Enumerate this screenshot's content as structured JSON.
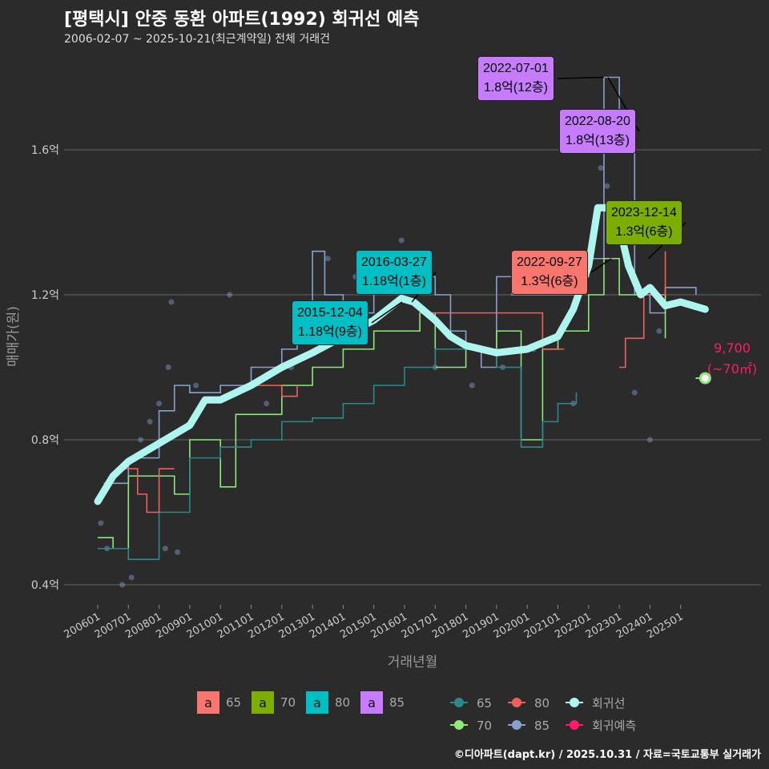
{
  "header": {
    "title": "[평택시] 안중 동환 아파트(1992) 회귀선 예측",
    "subtitle": "2006-02-07 ~ 2025-10-21(최근계약일) 전체 거래건"
  },
  "footer": "©디아파트(dapt.kr) / 2025.10.31 / 자료=국토교통부 실거래가",
  "chart_data": {
    "type": "line",
    "xlabel": "거래년월",
    "ylabel": "매매가(원)",
    "xticks": [
      "200601",
      "200701",
      "200801",
      "200901",
      "201001",
      "201101",
      "201201",
      "201301",
      "201401",
      "201501",
      "201601",
      "201701",
      "201801",
      "201901",
      "202001",
      "202101",
      "202201",
      "202301",
      "202401",
      "202501"
    ],
    "yticks": [
      {
        "v": 0.4,
        "label": "0.4억"
      },
      {
        "v": 0.8,
        "label": "0.8억"
      },
      {
        "v": 1.2,
        "label": "1.2억"
      },
      {
        "v": 1.6,
        "label": "1.6억"
      }
    ],
    "ylim": [
      0.32,
      1.86
    ],
    "xlim": [
      2005.3,
      2026.3
    ],
    "colors": {
      "65": "#2a8a8a",
      "70": "#8ee87a",
      "80": "#f0605a",
      "85": "#8aa0cc",
      "reg": "#aef5f0",
      "pred": "#ff1a6e"
    },
    "series": [
      {
        "name": "85",
        "points": [
          [
            2006.2,
            0.68
          ],
          [
            2007,
            0.75
          ],
          [
            2008,
            0.88
          ],
          [
            2008.5,
            0.95
          ],
          [
            2009,
            0.93
          ],
          [
            2010,
            0.95
          ],
          [
            2011,
            1.0
          ],
          [
            2012,
            1.05
          ],
          [
            2012.5,
            1.1
          ],
          [
            2013,
            1.32
          ],
          [
            2013.4,
            1.2
          ],
          [
            2014,
            1.15
          ],
          [
            2015,
            1.25
          ],
          [
            2016,
            1.25
          ],
          [
            2017,
            1.2
          ],
          [
            2017.5,
            1.1
          ],
          [
            2018,
            1.05
          ],
          [
            2018.5,
            1.0
          ],
          [
            2019,
            1.25
          ],
          [
            2019.5,
            1.2
          ],
          [
            2020,
            1.2
          ],
          [
            2021,
            1.2
          ],
          [
            2021.5,
            1.25
          ],
          [
            2022,
            1.3
          ],
          [
            2022.5,
            1.8
          ],
          [
            2023,
            1.6
          ],
          [
            2023.5,
            1.2
          ],
          [
            2024,
            1.15
          ],
          [
            2024.5,
            1.22
          ],
          [
            2025.5,
            1.2
          ]
        ]
      },
      {
        "name": "70",
        "points": [
          [
            2006,
            0.53
          ],
          [
            2006.5,
            0.5
          ],
          [
            2007,
            0.7
          ],
          [
            2008,
            0.7
          ],
          [
            2008.5,
            0.65
          ],
          [
            2009,
            0.8
          ],
          [
            2010,
            0.67
          ],
          [
            2010.5,
            0.87
          ],
          [
            2011,
            0.87
          ],
          [
            2012,
            0.95
          ],
          [
            2013,
            1.0
          ],
          [
            2014,
            1.05
          ],
          [
            2015,
            1.1
          ],
          [
            2016,
            1.1
          ],
          [
            2016.5,
            1.15
          ],
          [
            2017,
            1.0
          ],
          [
            2018,
            1.05
          ],
          [
            2019,
            1.1
          ],
          [
            2019.8,
            0.8
          ],
          [
            2020.3,
            0.8
          ],
          [
            2020.5,
            1.05
          ],
          [
            2021,
            1.1
          ],
          [
            2022,
            1.2
          ],
          [
            2022.5,
            1.3
          ],
          [
            2023,
            1.2
          ],
          [
            2024,
            1.2
          ],
          [
            2024.5,
            1.08
          ]
        ]
      },
      {
        "name": "65",
        "points": [
          [
            2006,
            0.5
          ],
          [
            2007,
            0.47
          ],
          [
            2008,
            0.6
          ],
          [
            2009,
            0.75
          ],
          [
            2010,
            0.78
          ],
          [
            2011,
            0.8
          ],
          [
            2012,
            0.85
          ],
          [
            2013,
            0.86
          ],
          [
            2014,
            0.9
          ],
          [
            2015,
            0.95
          ],
          [
            2016,
            1.0
          ],
          [
            2017,
            1.05
          ],
          [
            2018,
            1.05
          ],
          [
            2019,
            1.0
          ],
          [
            2019.8,
            0.78
          ],
          [
            2020.5,
            0.85
          ],
          [
            2021,
            0.9
          ],
          [
            2021.6,
            0.93
          ]
        ]
      },
      {
        "name": "80",
        "points": [
          [
            2006.6,
            0.72
          ],
          [
            2007.3,
            0.65
          ],
          [
            2007.6,
            0.6
          ],
          [
            2008,
            0.72
          ],
          [
            2008.5,
            0.72
          ]
        ]
      },
      {
        "name": "80",
        "points": [
          [
            2011,
            0.95
          ],
          [
            2011.5,
            0.95
          ],
          [
            2012,
            0.92
          ],
          [
            2012.5,
            0.95
          ]
        ]
      },
      {
        "name": "80",
        "points": [
          [
            2016.5,
            1.15
          ],
          [
            2017.2,
            1.15
          ],
          [
            2020.5,
            1.05
          ],
          [
            2021.2,
            1.05
          ]
        ]
      },
      {
        "name": "80",
        "points": [
          [
            2023,
            1.0
          ],
          [
            2023.2,
            1.08
          ],
          [
            2023.6,
            1.08
          ],
          [
            2023.8,
            1.2
          ],
          [
            2024.5,
            1.32
          ]
        ]
      }
    ],
    "regression": {
      "name": "회귀선",
      "points": [
        [
          2006,
          0.63
        ],
        [
          2006.5,
          0.7
        ],
        [
          2007,
          0.74
        ],
        [
          2008,
          0.79
        ],
        [
          2009,
          0.84
        ],
        [
          2009.5,
          0.91
        ],
        [
          2010,
          0.91
        ],
        [
          2011,
          0.95
        ],
        [
          2012,
          1.0
        ],
        [
          2013,
          1.04
        ],
        [
          2014,
          1.085
        ],
        [
          2015,
          1.13
        ],
        [
          2015.9,
          1.19
        ],
        [
          2016.3,
          1.18
        ],
        [
          2017,
          1.13
        ],
        [
          2017.5,
          1.085
        ],
        [
          2018,
          1.06
        ],
        [
          2019,
          1.04
        ],
        [
          2020,
          1.05
        ],
        [
          2021,
          1.085
        ],
        [
          2021.5,
          1.16
        ],
        [
          2022,
          1.28
        ],
        [
          2022.3,
          1.44
        ],
        [
          2022.6,
          1.44
        ],
        [
          2023,
          1.39
        ],
        [
          2023.3,
          1.28
        ],
        [
          2023.7,
          1.2
        ],
        [
          2024,
          1.22
        ],
        [
          2024.5,
          1.17
        ],
        [
          2025,
          1.18
        ],
        [
          2025.8,
          1.16
        ]
      ]
    },
    "scatter": [
      [
        2006.1,
        0.57
      ],
      [
        2006.3,
        0.5
      ],
      [
        2006.8,
        0.4
      ],
      [
        2007.1,
        0.42
      ],
      [
        2007.4,
        0.8
      ],
      [
        2007.7,
        0.85
      ],
      [
        2008,
        0.9
      ],
      [
        2008.3,
        1.0
      ],
      [
        2008.4,
        1.18
      ],
      [
        2008.2,
        0.5
      ],
      [
        2008.6,
        0.49
      ],
      [
        2009.2,
        0.95
      ],
      [
        2010.3,
        1.2
      ],
      [
        2011.5,
        0.9
      ],
      [
        2012.3,
        1.0
      ],
      [
        2013.5,
        1.3
      ],
      [
        2014.4,
        1.25
      ],
      [
        2015.5,
        1.3
      ],
      [
        2015.9,
        1.35
      ],
      [
        2016.8,
        1.3
      ],
      [
        2017,
        1.0
      ],
      [
        2018.2,
        0.95
      ],
      [
        2019.2,
        1.0
      ],
      [
        2020.2,
        1.05
      ],
      [
        2021.5,
        0.9
      ],
      [
        2022.4,
        1.55
      ],
      [
        2022.6,
        1.5
      ],
      [
        2023.5,
        0.93
      ],
      [
        2024,
        0.8
      ],
      [
        2024.3,
        1.1
      ]
    ],
    "annotations": [
      {
        "date": "2022-07-01",
        "price": "1.8억(12층)",
        "group": "85",
        "x": 2022.5,
        "y": 1.8
      },
      {
        "date": "2022-08-20",
        "price": "1.8억(13층)",
        "group": "85",
        "x": 2022.63,
        "y": 1.8
      },
      {
        "date": "2023-12-14",
        "price": "1.3억(6층)",
        "group": "70",
        "x": 2023.95,
        "y": 1.3
      },
      {
        "date": "2022-09-27",
        "price": "1.3억(6층)",
        "group": "65",
        "x": 2022.74,
        "y": 1.3
      },
      {
        "date": "2016-03-27",
        "price": "1.18억(1층)",
        "group": "80",
        "x": 2016.24,
        "y": 1.18
      },
      {
        "date": "2015-12-04",
        "price": "1.18억(9층)",
        "group": "80",
        "x": 2015.92,
        "y": 1.18
      }
    ],
    "prediction": {
      "x": 2025.8,
      "y": 0.97,
      "label1": "9,700",
      "label2": "(~70㎡)"
    },
    "legend": {
      "label_boxes": [
        {
          "g": "65",
          "color": "#f8766d"
        },
        {
          "g": "70",
          "color": "#7cae00"
        },
        {
          "g": "80",
          "color": "#00bfc4"
        },
        {
          "g": "85",
          "color": "#c77cff"
        }
      ],
      "letter": "a",
      "lines": [
        {
          "g": "65",
          "key": "65"
        },
        {
          "g": "80",
          "key": "80"
        },
        {
          "g": "회귀선",
          "key": "reg"
        },
        {
          "g": "70",
          "key": "70"
        },
        {
          "g": "85",
          "key": "85"
        },
        {
          "g": "회귀예측",
          "key": "pred"
        }
      ]
    }
  }
}
